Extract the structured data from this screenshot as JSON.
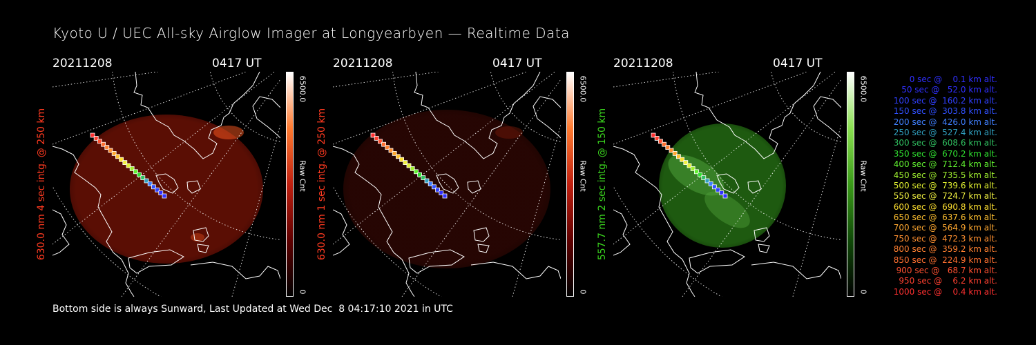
{
  "title": "Kyoto U / UEC All-sky Airglow Imager at Longyearbyen — Realtime Data",
  "footer": "Bottom side is always Sunward, Last Updated at Wed Dec  8 04:17:10 2021 in UTC",
  "colors": {
    "red": "#ff2a10",
    "green": "#32d21a",
    "white": "#ffffff",
    "background": "#000000"
  },
  "panels": [
    {
      "date": "20211208",
      "time": "0417 UT",
      "ylabel": "630.0 nm 4 sec intg. @ 250 km",
      "ylabel_color": "#ff3a20",
      "cbar_max": "6500.0",
      "cbar_min": "0",
      "cbar_label": "Raw Cnt",
      "scheme": "red"
    },
    {
      "date": "20211208",
      "time": "0417 UT",
      "ylabel": "630.0 nm 1 sec intg. @ 250 km",
      "ylabel_color": "#ff3a20",
      "cbar_max": "6500.0",
      "cbar_min": "0",
      "cbar_label": "Raw Cnt",
      "scheme": "dimred"
    },
    {
      "date": "20211208",
      "time": "0417 UT",
      "ylabel": "557.7 nm 2 sec intg. @ 150 km",
      "ylabel_color": "#3ad41e",
      "cbar_max": "6500.0",
      "cbar_min": "0",
      "cbar_label": "Raw Cnt",
      "scheme": "green"
    }
  ],
  "legend": [
    {
      "text": "0 sec @    0.1 km alt.",
      "color": "#3030ff"
    },
    {
      "text": "50 sec @   52.0 km alt.",
      "color": "#3030ff"
    },
    {
      "text": "100 sec @  160.2 km alt.",
      "color": "#3040ff"
    },
    {
      "text": "150 sec @  303.8 km alt.",
      "color": "#3050ff"
    },
    {
      "text": "200 sec @  426.0 km alt.",
      "color": "#4080ff"
    },
    {
      "text": "250 sec @  527.4 km alt.",
      "color": "#30a0c0"
    },
    {
      "text": "300 sec @  608.6 km alt.",
      "color": "#30c060"
    },
    {
      "text": "350 sec @  670.2 km alt.",
      "color": "#30e030"
    },
    {
      "text": "400 sec @  712.4 km alt.",
      "color": "#60f030"
    },
    {
      "text": "450 sec @  735.5 km alt.",
      "color": "#a0f030"
    },
    {
      "text": "500 sec @  739.6 km alt.",
      "color": "#e0f030"
    },
    {
      "text": "550 sec @  724.7 km alt.",
      "color": "#f0f040"
    },
    {
      "text": "600 sec @  690.8 km alt.",
      "color": "#ffe030"
    },
    {
      "text": "650 sec @  637.6 km alt.",
      "color": "#ffc030"
    },
    {
      "text": "700 sec @  564.9 km alt.",
      "color": "#ffa830"
    },
    {
      "text": "750 sec @  472.3 km alt.",
      "color": "#ff9030"
    },
    {
      "text": "800 sec @  359.2 km alt.",
      "color": "#ff8030"
    },
    {
      "text": "850 sec @  224.9 km alt.",
      "color": "#ff7030"
    },
    {
      "text": "900 sec @   68.7 km alt.",
      "color": "#ff5030"
    },
    {
      "text": "950 sec @    6.2 km alt.",
      "color": "#ff4030"
    },
    {
      "text": "1000 sec @    0.4 km alt.",
      "color": "#ff3030"
    }
  ]
}
